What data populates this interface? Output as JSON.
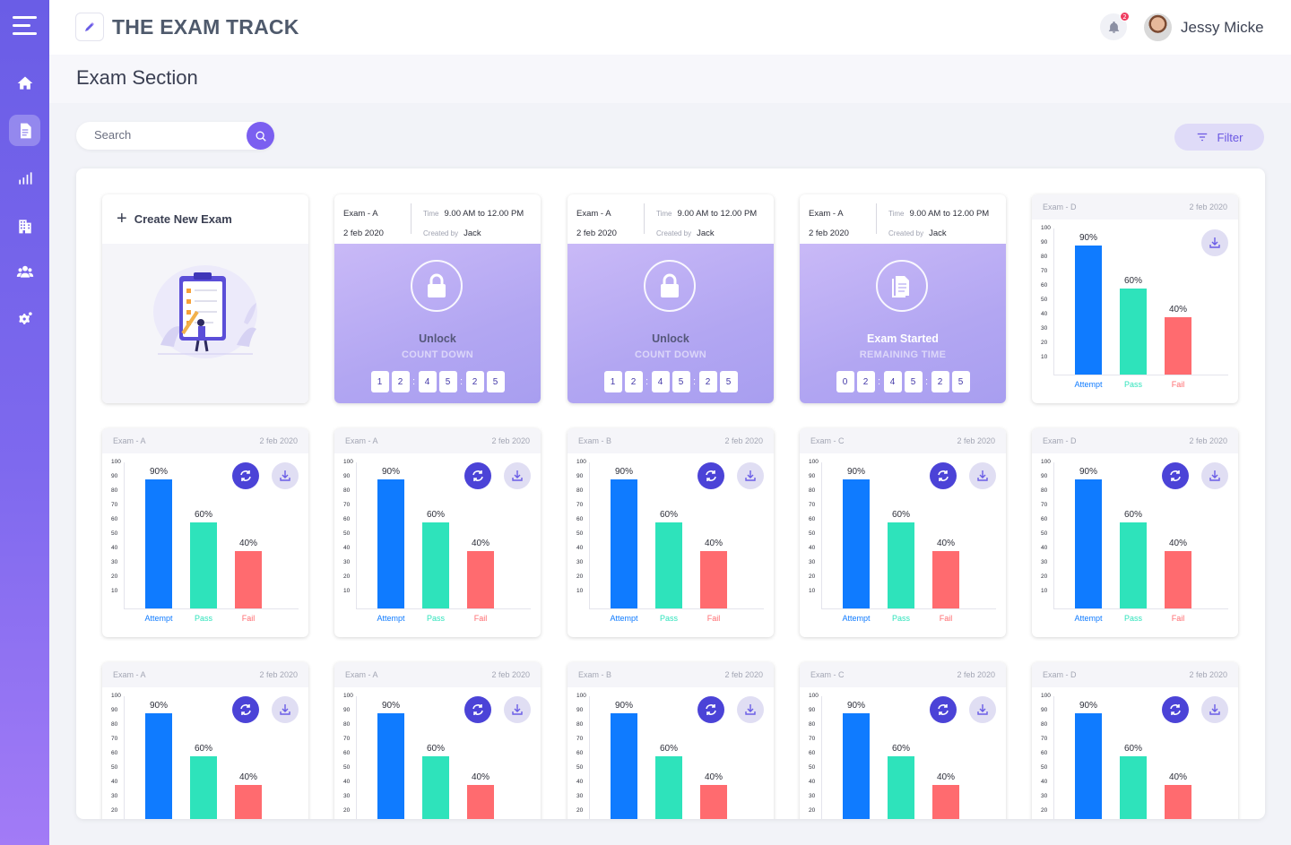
{
  "app": {
    "title": "THE EXAM TRACK"
  },
  "user": {
    "name": "Jessy Micke",
    "notifications": "2"
  },
  "page": {
    "title": "Exam Section"
  },
  "search": {
    "placeholder": "Search"
  },
  "filter": {
    "label": "Filter"
  },
  "colors": {
    "accent": "#6a5de6",
    "attempt": "#0f7bff",
    "pass": "#2ee3bb",
    "fail": "#ff6b6f"
  },
  "sidebar": {
    "items": [
      "home-icon",
      "document-icon",
      "analytics-icon",
      "building-icon",
      "users-icon",
      "settings-icon"
    ],
    "active": 1
  },
  "create_card": {
    "label": "Create New Exam"
  },
  "exam_cards": [
    {
      "exam": "Exam - A",
      "date": "2 feb 2020",
      "time_label": "Time",
      "time": "9.00 AM to 12.00 PM",
      "created_label": "Created by",
      "created_by": "Jack",
      "status": "Unlock",
      "sub": "COUNT DOWN",
      "digits": [
        "1",
        "2",
        "4",
        "5",
        "2",
        "5"
      ],
      "icon": "lock-icon"
    },
    {
      "exam": "Exam - A",
      "date": "2 feb 2020",
      "time_label": "Time",
      "time": "9.00 AM to 12.00 PM",
      "created_label": "Created by",
      "created_by": "Jack",
      "status": "Unlock",
      "sub": "COUNT DOWN",
      "digits": [
        "1",
        "2",
        "4",
        "5",
        "2",
        "5"
      ],
      "icon": "lock-icon"
    },
    {
      "exam": "Exam - A",
      "date": "2 feb 2020",
      "time_label": "Time",
      "time": "9.00 AM to 12.00 PM",
      "created_label": "Created by",
      "created_by": "Jack",
      "status": "Exam Started",
      "sub": "REMAINING TIME",
      "digits": [
        "0",
        "2",
        "4",
        "5",
        "2",
        "5"
      ],
      "icon": "document-icon"
    }
  ],
  "chart_cards": [
    {
      "exam": "Exam - D",
      "date": "2 feb 2020"
    },
    {
      "exam": "Exam - A",
      "date": "2 feb 2020"
    },
    {
      "exam": "Exam - A",
      "date": "2 feb 2020"
    },
    {
      "exam": "Exam - B",
      "date": "2 feb 2020"
    },
    {
      "exam": "Exam - C",
      "date": "2 feb 2020"
    },
    {
      "exam": "Exam - D",
      "date": "2 feb 2020"
    },
    {
      "exam": "Exam - A",
      "date": "2 feb 2020"
    },
    {
      "exam": "Exam - A",
      "date": "2 feb 2020"
    },
    {
      "exam": "Exam - B",
      "date": "2 feb 2020"
    },
    {
      "exam": "Exam - C",
      "date": "2 feb 2020"
    },
    {
      "exam": "Exam - D",
      "date": "2 feb 2020"
    }
  ],
  "chart_data": {
    "type": "bar",
    "categories": [
      "Attempt",
      "Pass",
      "Fail"
    ],
    "values": [
      90,
      60,
      40
    ],
    "value_labels": [
      "90%",
      "60%",
      "40%"
    ],
    "y_ticks": [
      "100",
      "90",
      "80",
      "70",
      "60",
      "50",
      "40",
      "30",
      "20",
      "10"
    ],
    "ylim": [
      0,
      100
    ],
    "colors": [
      "#0f7bff",
      "#2ee3bb",
      "#ff6b6f"
    ]
  }
}
